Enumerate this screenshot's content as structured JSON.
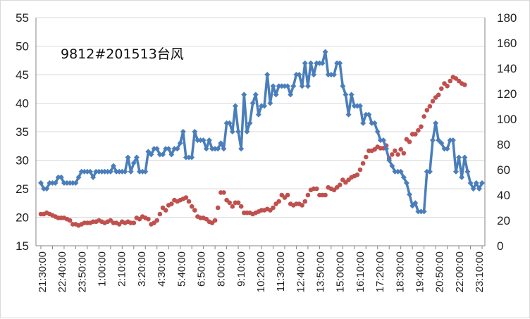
{
  "chart_data": {
    "type": "line",
    "annotation": "9812#201513台风",
    "x_tick_labels": [
      "21:30:00",
      "22:40:00",
      "23:50:00",
      "1:00:00",
      "2:10:00",
      "3:20:00",
      "4:30:00",
      "5:40:00",
      "6:50:00",
      "8:00:00",
      "9:10:00",
      "10:20:00",
      "11:30:00",
      "12:40:00",
      "13:50:00",
      "15:00:00",
      "16:10:00",
      "17:20:00",
      "18:30:00",
      "19:40:00",
      "20:50:00",
      "22:00:00",
      "23:10:00"
    ],
    "y_left": {
      "min": 15,
      "max": 55,
      "step": 5,
      "ticks": [
        15,
        20,
        25,
        30,
        35,
        40,
        45,
        50,
        55
      ]
    },
    "y_right": {
      "min": 0,
      "max": 180,
      "step": 20,
      "ticks": [
        0,
        20,
        40,
        60,
        80,
        100,
        120,
        140,
        160,
        180
      ]
    },
    "grid": "horizontal",
    "legend": "none",
    "series": [
      {
        "axis": "left",
        "style": "line-diamond",
        "color": "#4a7ebb",
        "values": [
          26,
          25,
          25,
          26,
          26,
          26,
          27,
          27,
          26,
          26,
          26,
          26,
          26,
          27,
          28,
          28,
          28,
          28,
          27,
          28,
          28,
          28,
          28,
          28,
          28,
          29,
          28,
          28,
          28,
          28,
          30.5,
          28,
          29.5,
          30.5,
          28,
          28,
          28,
          31.5,
          31,
          32,
          32,
          31,
          31,
          32,
          32,
          31,
          32,
          32,
          33,
          35,
          30.5,
          30.5,
          30.5,
          35,
          33.5,
          33.5,
          33.5,
          32,
          33.5,
          32,
          32,
          32,
          33,
          32,
          36.5,
          36.5,
          35,
          39.5,
          35,
          32,
          41.5,
          35,
          36.5,
          40,
          41.5,
          38,
          39.5,
          39.5,
          45,
          40,
          43,
          41.5,
          43,
          43,
          43,
          43,
          41.5,
          43,
          45,
          45,
          43,
          47,
          43,
          47,
          45,
          47,
          47,
          47,
          49,
          45,
          45,
          45,
          47,
          47,
          43,
          41.5,
          38,
          41.5,
          39.5,
          39.5,
          39.5,
          36.5,
          38,
          38,
          36.5,
          36.5,
          35,
          33.5,
          33.5,
          32,
          30,
          29,
          28,
          28,
          28,
          27,
          26,
          24,
          22,
          22.5,
          21,
          21,
          21,
          28,
          28,
          33.5,
          36.5,
          33.5,
          33,
          32,
          32,
          33.5,
          33.5,
          28,
          30.5,
          27,
          30.5,
          28,
          26,
          25,
          26,
          25,
          26
        ]
      },
      {
        "axis": "right",
        "style": "markers",
        "color": "#c0504d",
        "values": [
          25,
          25,
          26,
          25,
          24,
          23,
          22,
          22,
          22,
          21,
          20,
          17,
          17,
          16,
          17,
          18,
          18,
          18,
          19,
          19,
          20,
          19,
          18,
          19,
          20,
          18,
          18,
          17,
          19,
          18,
          19,
          18,
          18,
          22,
          21,
          23,
          22,
          21,
          17,
          18,
          20,
          25,
          30,
          28,
          32,
          33,
          36,
          35,
          36,
          37,
          38,
          35,
          31,
          28,
          23,
          22,
          22,
          21,
          19,
          18,
          20,
          30,
          42,
          42,
          36,
          34,
          31,
          34,
          34,
          31,
          26,
          26,
          26,
          25,
          26,
          27,
          28,
          28,
          29,
          28,
          30,
          33,
          35,
          40,
          38,
          40,
          33,
          32,
          33,
          33,
          32,
          35,
          40,
          44,
          45,
          45,
          40,
          40,
          40,
          46,
          45,
          44,
          46,
          48,
          52,
          50,
          52,
          54,
          55,
          56,
          60,
          65,
          70,
          75,
          75,
          76,
          78,
          77,
          77,
          79,
          69,
          72,
          75,
          72,
          76,
          73,
          84,
          82,
          88,
          88,
          91,
          94,
          102,
          107,
          110,
          114,
          117,
          119,
          124,
          128,
          126,
          130,
          133,
          132,
          130,
          128,
          127
        ]
      }
    ]
  }
}
